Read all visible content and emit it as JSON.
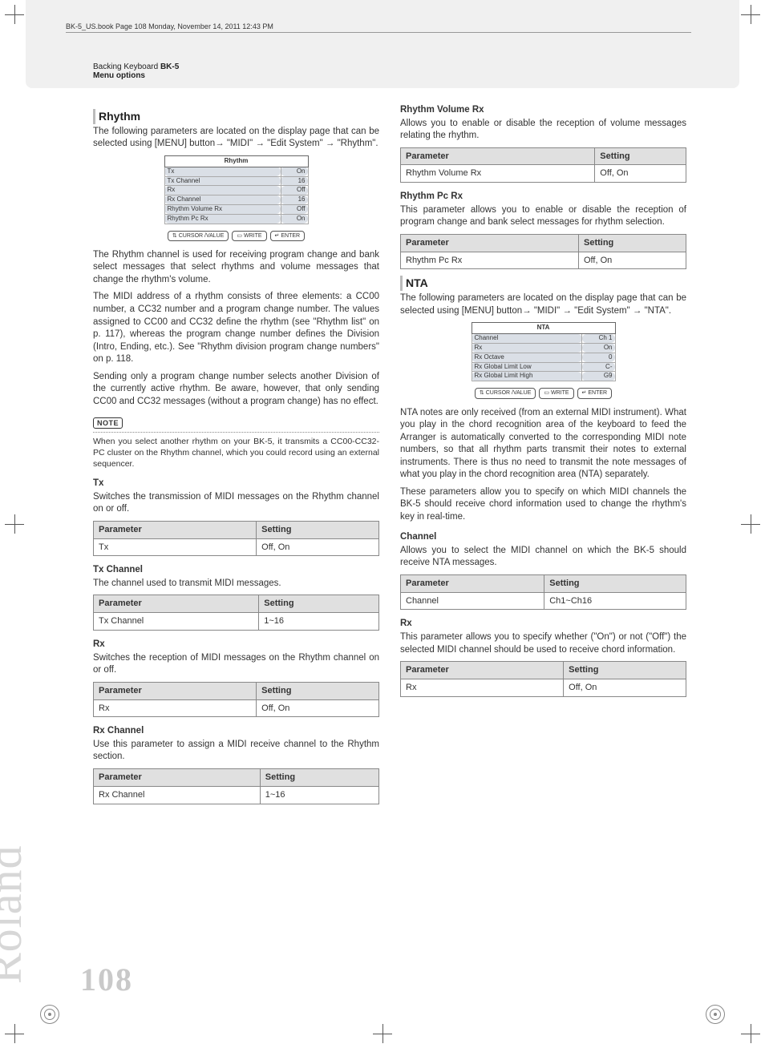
{
  "meta": {
    "book_tag": "BK-5_US.book  Page 108  Monday, November 14, 2011  12:43 PM",
    "header_line1": "Backing Keyboard ",
    "header_model": "BK-5",
    "header_line2": "Menu options",
    "side_brand": "Roland",
    "page_number": "108"
  },
  "left": {
    "rhythm_title": "Rhythm",
    "rhythm_intro": "The following parameters are located on the display page that can be selected using [MENU] button→ \"MIDI\" → \"Edit System\" → \"Rhythm\".",
    "lcd_rhythm": {
      "title": "Rhythm",
      "rows": [
        {
          "k": "Tx",
          "v": "On"
        },
        {
          "k": "Tx Channel",
          "v": "16"
        },
        {
          "k": "Rx",
          "v": "Off"
        },
        {
          "k": "Rx Channel",
          "v": "16"
        },
        {
          "k": "Rhythm Volume Rx",
          "v": "Off"
        },
        {
          "k": "Rhythm Pc Rx",
          "v": "On"
        }
      ]
    },
    "btn1": "⇅ CURSOR /VALUE",
    "btn2": "▭ WRITE",
    "btn3": "↵ ENTER",
    "para1": "The Rhythm channel is used for receiving program change and bank select messages that select rhythms and volume messages that change the rhythm's volume.",
    "para2": "The MIDI address of a rhythm consists of three elements: a CC00 number, a CC32 number and a program change number. The values assigned to CC00 and CC32 define the rhythm (see \"Rhythm list\" on p. 117), whereas the program change number defines the Division (Intro, Ending, etc.). See \"Rhythm division program change numbers\" on p. 118.",
    "para3": "Sending only a program change number selects another Division of the currently active rhythm. Be aware, however, that only sending CC00 and CC32 messages (without a program change) has no effect.",
    "note_label": "NOTE",
    "note_text": "When you select another rhythm on your BK-5, it transmits a CC00-CC32-PC cluster on the Rhythm channel, which you could record using an external sequencer.",
    "tx_h": "Tx",
    "tx_p": "Switches the transmission of MIDI messages on the Rhythm channel on or off.",
    "tx_table": {
      "param": "Tx",
      "setting": "Off, On"
    },
    "txch_h": "Tx Channel",
    "txch_p": "The channel used to transmit MIDI messages.",
    "txch_table": {
      "param": "Tx Channel",
      "setting": "1~16"
    },
    "rx_h": "Rx",
    "rx_p": "Switches the reception of MIDI messages on the Rhythm channel on or off.",
    "rx_table": {
      "param": "Rx",
      "setting": "Off, On"
    },
    "rxch_h": "Rx Channel",
    "rxch_p": "Use this parameter to assign a MIDI receive channel to the Rhythm section.",
    "rxch_table": {
      "param": "Rx Channel",
      "setting": "1~16"
    }
  },
  "right": {
    "rvr_h": "Rhythm Volume Rx",
    "rvr_p": "Allows you to enable or disable the reception of volume messages relating the rhythm.",
    "rvr_table": {
      "param": "Rhythm Volume Rx",
      "setting": "Off, On"
    },
    "rpc_h": "Rhythm Pc Rx",
    "rpc_p": "This parameter allows you to enable or disable the reception of program change and bank select messages for rhythm selection.",
    "rpc_table": {
      "param": "Rhythm Pc Rx",
      "setting": "Off, On"
    },
    "nta_title": "NTA",
    "nta_intro": "The following parameters are located on the display page that can be selected using [MENU] button→ \"MIDI\" → \"Edit System\" → \"NTA\".",
    "lcd_nta": {
      "title": "NTA",
      "rows": [
        {
          "k": "Channel",
          "v": "Ch 1"
        },
        {
          "k": "Rx",
          "v": "On"
        },
        {
          "k": "Rx Octave",
          "v": "0"
        },
        {
          "k": "Rx Global Limit Low",
          "v": "C-"
        },
        {
          "k": "Rx Global Limit High",
          "v": "G9"
        }
      ]
    },
    "nta_p1": "NTA notes are only received (from an external MIDI instrument). What you play in the chord recognition area of the keyboard to feed the Arranger is automatically converted to the corresponding MIDI note numbers, so that all rhythm parts transmit their notes to external instruments. There is thus no need to transmit the note messages of what you play in the chord recognition area (NTA) separately.",
    "nta_p2": "These parameters allow you to specify on which MIDI channels the BK-5 should receive chord information used to change the rhythm's key in real-time.",
    "ch_h": "Channel",
    "ch_p": "Allows you to select the MIDI channel on which the BK-5 should receive NTA messages.",
    "ch_table": {
      "param": "Channel",
      "setting": "Ch1~Ch16"
    },
    "rx2_h": "Rx",
    "rx2_p": "This parameter allows you to specify whether (\"On\") or not (\"Off\") the selected MIDI channel should be used to receive chord information.",
    "rx2_table": {
      "param": "Rx",
      "setting": "Off, On"
    }
  },
  "th": {
    "param": "Parameter",
    "setting": "Setting"
  }
}
